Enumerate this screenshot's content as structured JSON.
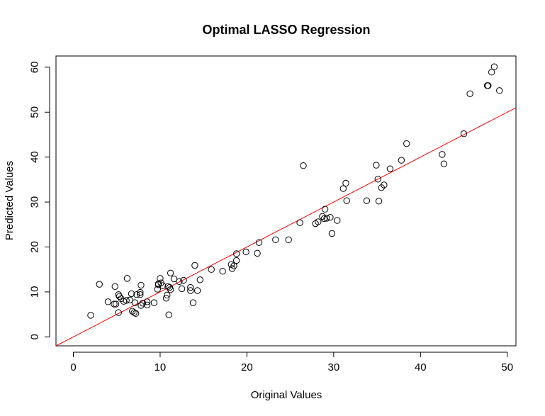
{
  "chart_data": {
    "type": "scatter",
    "title": "Optimal LASSO Regression",
    "xlabel": "Original Values",
    "ylabel": "Predicted Values",
    "xlim": [
      -2,
      51
    ],
    "ylim": [
      -2,
      62.5
    ],
    "xticks": [
      0,
      10,
      20,
      30,
      40,
      50
    ],
    "yticks": [
      0,
      10,
      20,
      30,
      40,
      50,
      60
    ],
    "grid": false,
    "legend": "none",
    "colors": {
      "points": "#000000",
      "line": "#ff0000"
    },
    "reference_line": {
      "intercept": 0,
      "slope": 1
    },
    "points": [
      [
        2.0,
        4.8
      ],
      [
        3.0,
        11.7
      ],
      [
        4.0,
        7.8
      ],
      [
        4.7,
        7.3
      ],
      [
        4.8,
        11.2
      ],
      [
        4.9,
        7.3
      ],
      [
        5.2,
        5.4
      ],
      [
        5.2,
        9.4
      ],
      [
        5.3,
        9.0
      ],
      [
        5.5,
        8.5
      ],
      [
        5.8,
        7.9
      ],
      [
        6.1,
        8.1
      ],
      [
        6.2,
        13.0
      ],
      [
        6.5,
        8.2
      ],
      [
        6.7,
        9.6
      ],
      [
        6.8,
        5.7
      ],
      [
        7.0,
        5.4
      ],
      [
        7.1,
        7.6
      ],
      [
        7.2,
        5.2
      ],
      [
        7.3,
        9.4
      ],
      [
        7.7,
        9.4
      ],
      [
        7.7,
        9.9
      ],
      [
        7.8,
        11.5
      ],
      [
        7.8,
        7.0
      ],
      [
        8.0,
        7.5
      ],
      [
        8.5,
        7.1
      ],
      [
        8.5,
        7.8
      ],
      [
        9.3,
        7.6
      ],
      [
        9.7,
        10.6
      ],
      [
        9.8,
        11.6
      ],
      [
        9.8,
        11.8
      ],
      [
        10.0,
        13.0
      ],
      [
        10.1,
        12.0
      ],
      [
        10.3,
        11.4
      ],
      [
        10.7,
        8.6
      ],
      [
        10.8,
        9.3
      ],
      [
        10.9,
        11.2
      ],
      [
        11.1,
        11.0
      ],
      [
        11.2,
        10.5
      ],
      [
        11.0,
        4.9
      ],
      [
        11.2,
        14.2
      ],
      [
        11.6,
        12.9
      ],
      [
        12.2,
        12.3
      ],
      [
        12.5,
        10.7
      ],
      [
        12.7,
        12.6
      ],
      [
        13.5,
        10.3
      ],
      [
        13.5,
        11.0
      ],
      [
        13.8,
        7.6
      ],
      [
        14.0,
        15.9
      ],
      [
        14.3,
        10.3
      ],
      [
        14.6,
        12.7
      ],
      [
        15.9,
        15.0
      ],
      [
        17.2,
        14.6
      ],
      [
        18.2,
        16.1
      ],
      [
        18.3,
        15.2
      ],
      [
        18.5,
        15.8
      ],
      [
        18.8,
        18.5
      ],
      [
        18.8,
        17.0
      ],
      [
        19.9,
        18.9
      ],
      [
        21.2,
        18.6
      ],
      [
        21.4,
        21.0
      ],
      [
        23.3,
        21.6
      ],
      [
        24.8,
        21.6
      ],
      [
        26.1,
        25.4
      ],
      [
        26.5,
        38.1
      ],
      [
        27.9,
        25.2
      ],
      [
        28.2,
        25.6
      ],
      [
        28.7,
        26.8
      ],
      [
        28.9,
        26.3
      ],
      [
        29.0,
        28.4
      ],
      [
        29.2,
        26.4
      ],
      [
        29.6,
        26.6
      ],
      [
        29.8,
        23.0
      ],
      [
        30.4,
        25.9
      ],
      [
        31.1,
        33.0
      ],
      [
        31.4,
        34.2
      ],
      [
        31.5,
        30.3
      ],
      [
        33.8,
        30.3
      ],
      [
        34.9,
        38.2
      ],
      [
        35.1,
        35.1
      ],
      [
        35.2,
        30.2
      ],
      [
        35.5,
        33.2
      ],
      [
        35.8,
        33.8
      ],
      [
        36.5,
        37.4
      ],
      [
        37.8,
        39.3
      ],
      [
        38.4,
        43.0
      ],
      [
        42.5,
        40.6
      ],
      [
        42.7,
        38.5
      ],
      [
        45.0,
        45.2
      ],
      [
        45.7,
        54.1
      ],
      [
        47.7,
        55.9
      ],
      [
        47.8,
        55.9
      ],
      [
        48.2,
        58.9
      ],
      [
        48.5,
        60.1
      ],
      [
        49.1,
        54.8
      ]
    ]
  }
}
